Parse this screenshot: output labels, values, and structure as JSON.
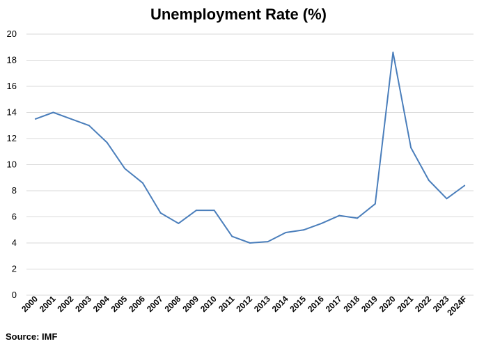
{
  "chart_data": {
    "type": "line",
    "title": "Unemployment Rate (%)",
    "categories": [
      "2000",
      "2001",
      "2002",
      "2003",
      "2004",
      "2005",
      "2006",
      "2007",
      "2008",
      "2009",
      "2010",
      "2011",
      "2012",
      "2013",
      "2014",
      "2015",
      "2016",
      "2017",
      "2018",
      "2019",
      "2020",
      "2021",
      "2022",
      "2023",
      "2024F"
    ],
    "series": [
      {
        "values": [
          13.5,
          14.0,
          13.5,
          13.0,
          11.7,
          9.7,
          8.6,
          6.3,
          5.5,
          6.5,
          6.5,
          4.5,
          4.0,
          4.1,
          4.8,
          5.0,
          5.5,
          6.1,
          5.9,
          7.0,
          18.6,
          11.3,
          8.8,
          7.4,
          8.4
        ],
        "color": "#4a7ebb"
      }
    ],
    "ylim": [
      0,
      20
    ],
    "yticks": [
      0,
      2,
      4,
      6,
      8,
      10,
      12,
      14,
      16,
      18,
      20
    ],
    "grid": true,
    "xlabel": "",
    "ylabel": "",
    "source": "Source: IMF"
  }
}
